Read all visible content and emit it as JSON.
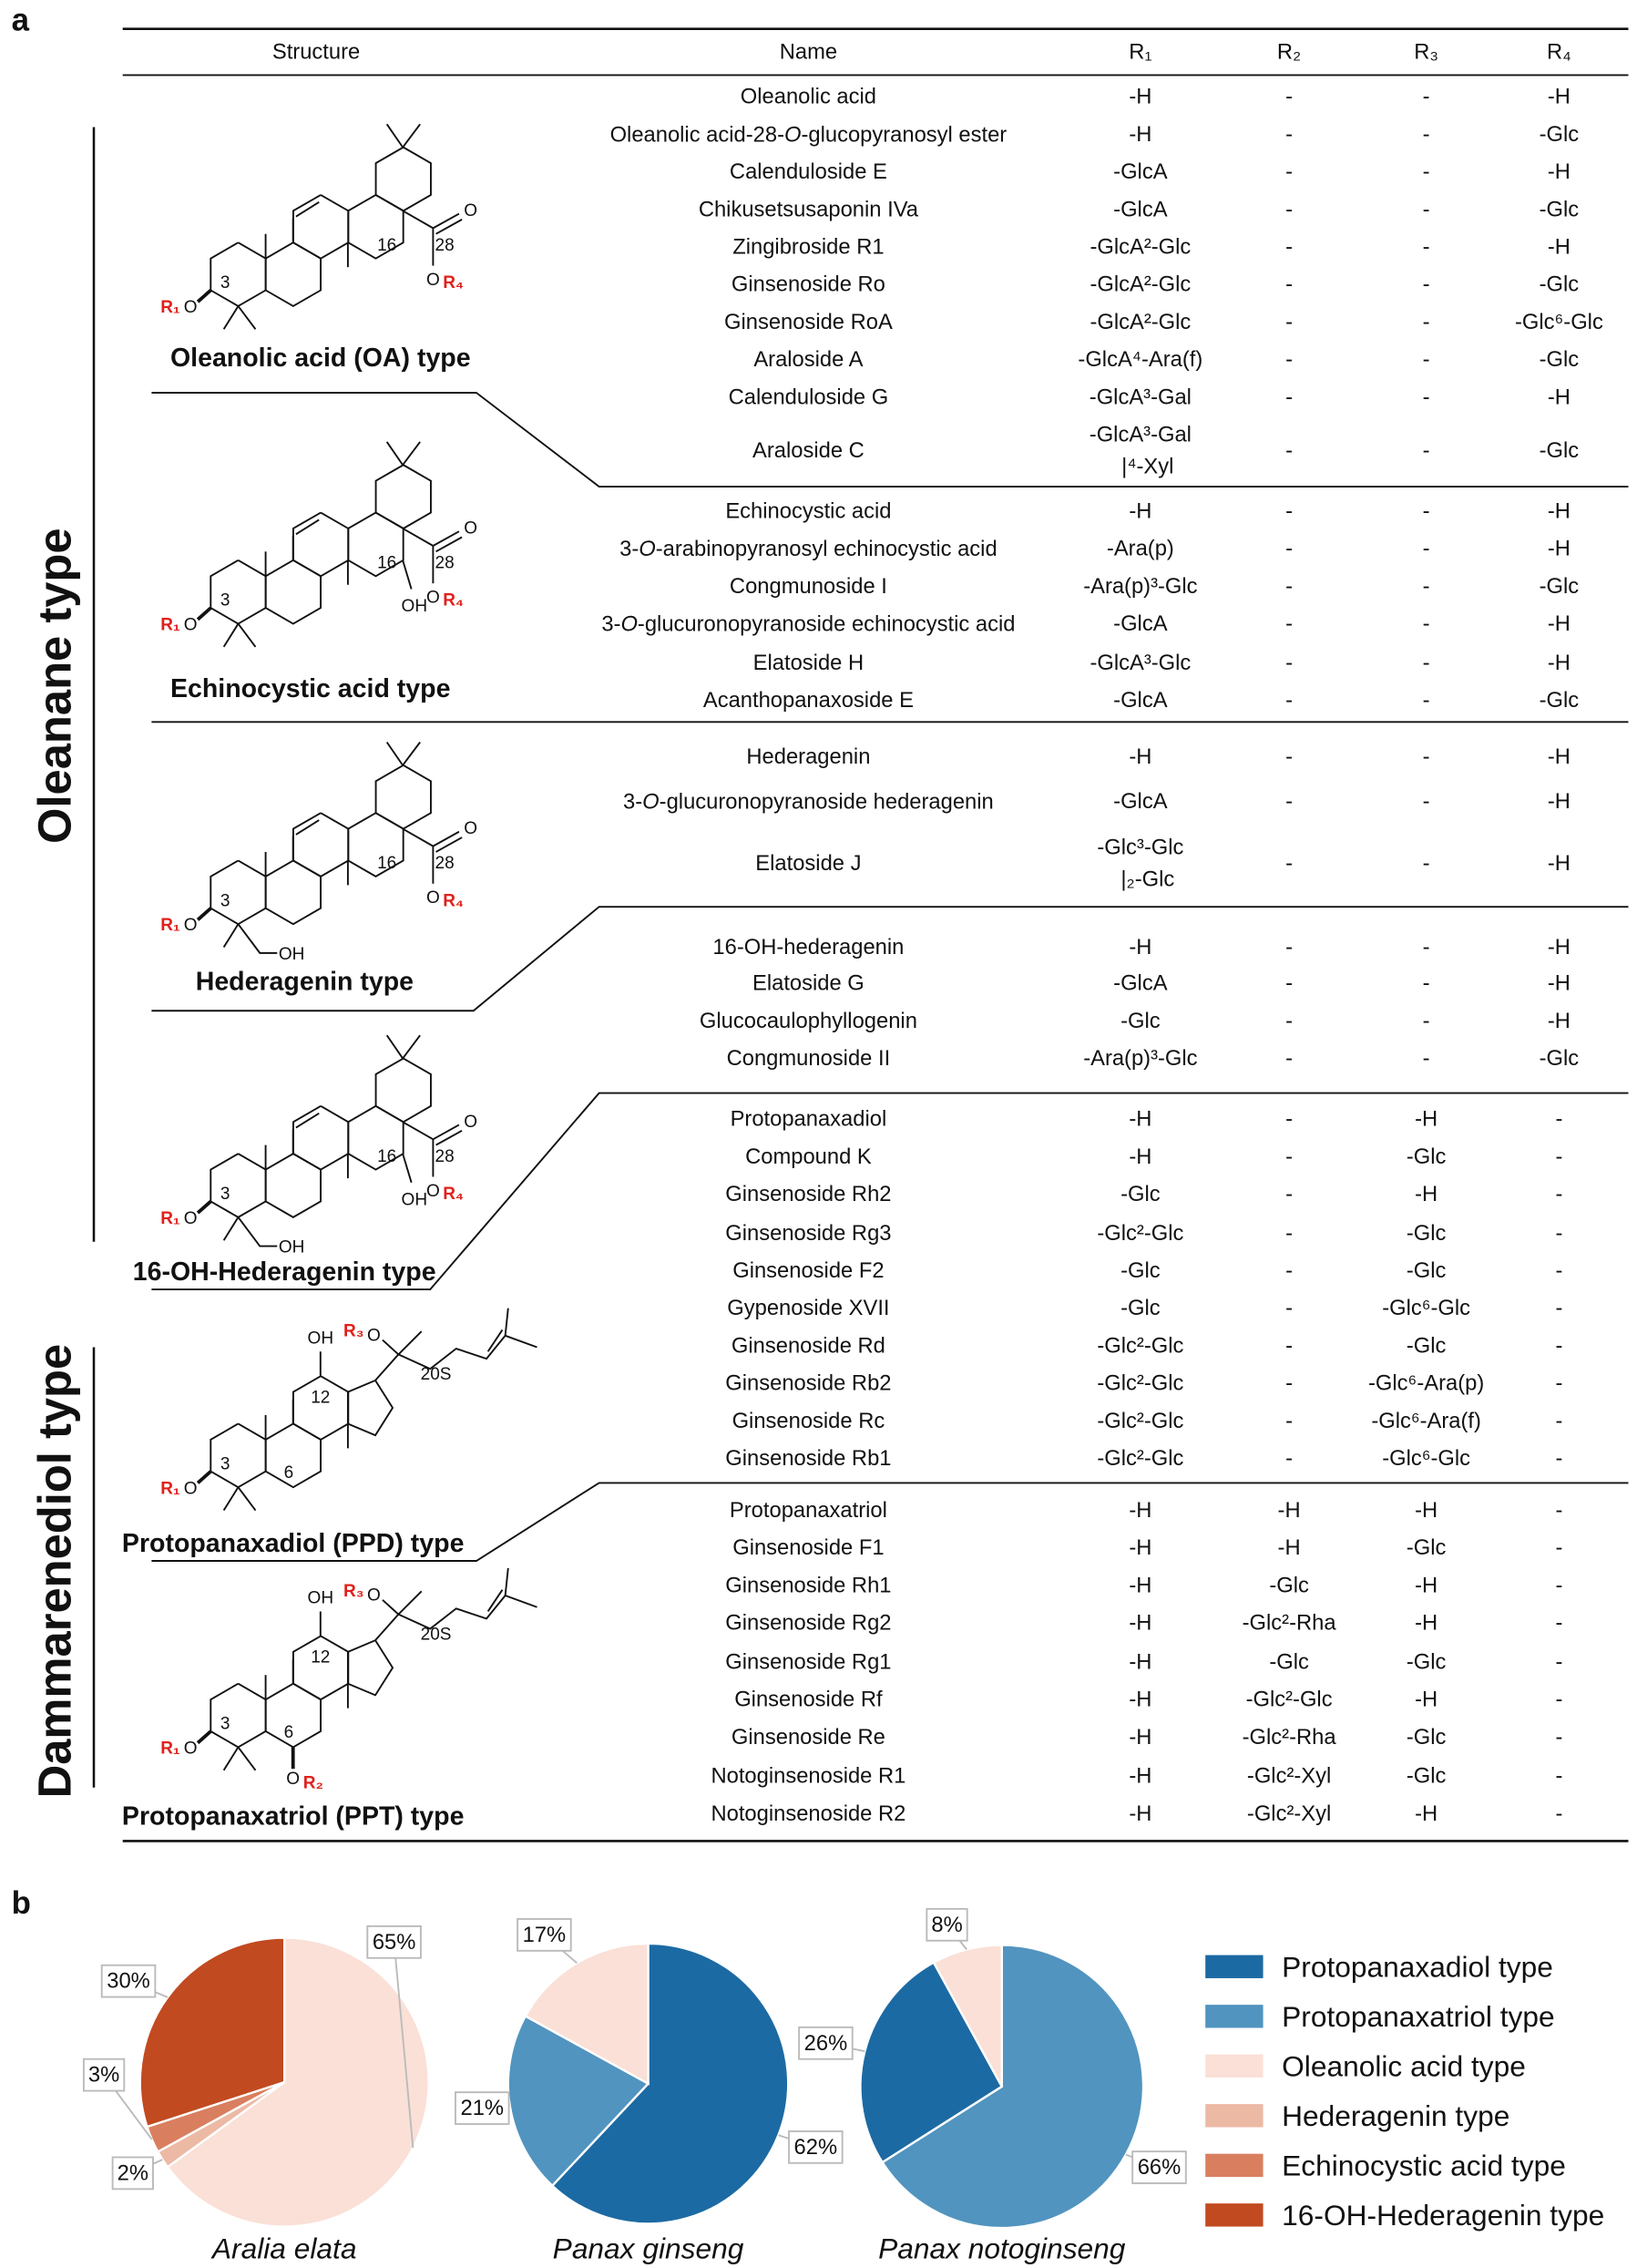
{
  "panels": [
    "a",
    "b"
  ],
  "families": [
    {
      "label": "Oleanane type"
    },
    {
      "label": "Dammarenediol type"
    }
  ],
  "table": {
    "header": [
      "Structure",
      "Name",
      "R₁",
      "R₂",
      "R₃",
      "R₄"
    ],
    "groups": [
      {
        "structure": {
          "label": "Oleanolic acid (OA) type",
          "atoms": {
            "r1": "R₁",
            "o3": "O",
            "c3": "3",
            "c16": "16",
            "c28": "28",
            "oc": "O",
            "oe": "O",
            "r4": "R₄"
          }
        },
        "rows": [
          [
            "Oleanolic acid",
            "-H",
            "-",
            "-",
            "-H"
          ],
          [
            "Oleanolic acid-28-O-glucopyranosyl ester",
            "-H",
            "-",
            "-",
            "-Glc"
          ],
          [
            "Calenduloside E",
            "-GlcA",
            "-",
            "-",
            "-H"
          ],
          [
            "Chikusetsusaponin IVa",
            "-GlcA",
            "-",
            "-",
            "-Glc"
          ],
          [
            "Zingibroside R1",
            "-GlcA²-Glc",
            "-",
            "-",
            "-H"
          ],
          [
            "Ginsenoside Ro",
            "-GlcA²-Glc",
            "-",
            "-",
            "-Glc"
          ],
          [
            "Ginsenoside RoA",
            "-GlcA²-Glc",
            "-",
            "-",
            "-Glc⁶-Glc"
          ],
          [
            "Araloside A",
            "-GlcA⁴-Ara(f)",
            "-",
            "-",
            "-Glc"
          ],
          [
            "Calenduloside G",
            "-GlcA³-Gal",
            "-",
            "-",
            "-H"
          ],
          [
            "Araloside C",
            [
              "-GlcA³-Gal",
              "|⁴-Xyl"
            ],
            "-",
            "-",
            "-Glc"
          ]
        ]
      },
      {
        "structure": {
          "label": "Echinocystic acid type",
          "atoms": {
            "r1": "R₁",
            "o3": "O",
            "c3": "3",
            "c16": "16",
            "c28": "28",
            "oc": "O",
            "oe": "O",
            "r4": "R₄",
            "oh16": "OH"
          }
        },
        "rows": [
          [
            "Echinocystic acid",
            "-H",
            "-",
            "-",
            "-H"
          ],
          [
            "3-O-arabinopyranosyl echinocystic acid",
            "-Ara(p)",
            "-",
            "-",
            "-H"
          ],
          [
            "Congmunoside I",
            "-Ara(p)³-Glc",
            "-",
            "-",
            "-Glc"
          ],
          [
            "3-O-glucuronopyranoside echinocystic acid",
            "-GlcA",
            "-",
            "-",
            "-H"
          ],
          [
            "Elatoside H",
            "-GlcA³-Glc",
            "-",
            "-",
            "-H"
          ],
          [
            "Acanthopanaxoside E",
            "-GlcA",
            "-",
            "-",
            "-Glc"
          ]
        ]
      },
      {
        "structure": {
          "label": "Hederagenin type",
          "atoms": {
            "r1": "R₁",
            "o3": "O",
            "c3": "3",
            "c16": "16",
            "c28": "28",
            "oc": "O",
            "oe": "O",
            "r4": "R₄",
            "ohCH2": "OH"
          }
        },
        "rows": [
          [
            "Hederagenin",
            "-H",
            "-",
            "-",
            "-H"
          ],
          [
            "3-O-glucuronopyranoside hederagenin",
            "-GlcA",
            "-",
            "-",
            "-H"
          ],
          [
            "Elatoside J",
            [
              "-Glc³-Glc",
              "|₂-Glc"
            ],
            "-",
            "-",
            "-H"
          ]
        ]
      },
      {
        "structure": {
          "label": "16-OH-Hederagenin type",
          "atoms": {
            "r1": "R₁",
            "o3": "O",
            "c3": "3",
            "c16": "16",
            "c28": "28",
            "oc": "O",
            "oe": "O",
            "r4": "R₄",
            "oh16": "OH",
            "ohCH2": "OH"
          }
        },
        "rows": [
          [
            "16-OH-hederagenin",
            "-H",
            "-",
            "-",
            "-H"
          ],
          [
            "Elatoside G",
            "-GlcA",
            "-",
            "-",
            "-H"
          ],
          [
            "Glucocaulophyllogenin",
            "-Glc",
            "-",
            "-",
            "-H"
          ],
          [
            "Congmunoside II",
            "-Ara(p)³-Glc",
            "-",
            "-",
            "-Glc"
          ]
        ]
      },
      {
        "structure": {
          "label": "Protopanaxadiol (PPD) type",
          "atoms": {
            "r1": "R₁",
            "o3": "O",
            "c3": "3",
            "c6": "6",
            "c12": "12",
            "oh12": "OH",
            "r3": "R₃",
            "o20": "O",
            "c20": "20S"
          }
        },
        "rows": [
          [
            "Protopanaxadiol",
            "-H",
            "-",
            "-H",
            "-"
          ],
          [
            "Compound K",
            "-H",
            "-",
            "-Glc",
            "-"
          ],
          [
            "Ginsenoside Rh2",
            "-Glc",
            "-",
            "-H",
            "-"
          ],
          [
            "Ginsenoside Rg3",
            "-Glc²-Glc",
            "-",
            "-Glc",
            "-"
          ],
          [
            "Ginsenoside F2",
            "-Glc",
            "-",
            "-Glc",
            "-"
          ],
          [
            "Gypenoside XVII",
            "-Glc",
            "-",
            "-Glc⁶-Glc",
            "-"
          ],
          [
            "Ginsenoside Rd",
            "-Glc²-Glc",
            "-",
            "-Glc",
            "-"
          ],
          [
            "Ginsenoside Rb2",
            "-Glc²-Glc",
            "-",
            "-Glc⁶-Ara(p)",
            "-"
          ],
          [
            "Ginsenoside Rc",
            "-Glc²-Glc",
            "-",
            "-Glc⁶-Ara(f)",
            "-"
          ],
          [
            "Ginsenoside Rb1",
            "-Glc²-Glc",
            "-",
            "-Glc⁶-Glc",
            "-"
          ]
        ]
      },
      {
        "structure": {
          "label": "Protopanaxatriol (PPT) type",
          "atoms": {
            "r1": "R₁",
            "o3": "O",
            "c3": "3",
            "c6": "6",
            "o6": "O",
            "r2": "R₂",
            "c12": "12",
            "oh12": "OH",
            "r3": "R₃",
            "o20": "O",
            "c20": "20S"
          }
        },
        "rows": [
          [
            "Protopanaxatriol",
            "-H",
            "-H",
            "-H",
            "-"
          ],
          [
            "Ginsenoside F1",
            "-H",
            "-H",
            "-Glc",
            "-"
          ],
          [
            "Ginsenoside Rh1",
            "-H",
            "-Glc",
            "-H",
            "-"
          ],
          [
            "Ginsenoside Rg2",
            "-H",
            "-Glc²-Rha",
            "-H",
            "-"
          ],
          [
            "Ginsenoside Rg1",
            "-H",
            "-Glc",
            "-Glc",
            "-"
          ],
          [
            "Ginsenoside Rf",
            "-H",
            "-Glc²-Glc",
            "-H",
            "-"
          ],
          [
            "Ginsenoside Re",
            "-H",
            "-Glc²-Rha",
            "-Glc",
            "-"
          ],
          [
            "Notoginsenoside R1",
            "-H",
            "-Glc²-Xyl",
            "-Glc",
            "-"
          ],
          [
            "Notoginsenoside R2",
            "-H",
            "-Glc²-Xyl",
            "-H",
            "-"
          ]
        ]
      }
    ]
  },
  "legend": [
    {
      "name": "Protopanaxadiol type",
      "color": "#1c6aa3"
    },
    {
      "name": "Protopanaxatriol type",
      "color": "#5194bf"
    },
    {
      "name": "Oleanolic acid type",
      "color": "#fae0d6"
    },
    {
      "name": "Hederagenin type",
      "color": "#ecb9a5"
    },
    {
      "name": "Echinocystic acid type",
      "color": "#d97f5f"
    },
    {
      "name": "16-OH-Hederagenin type",
      "color": "#c14a20"
    }
  ],
  "chart_data": [
    {
      "type": "pie",
      "title": "Aralia elata",
      "categories": [
        "Oleanolic acid type",
        "Hederagenin type",
        "Echinocystic acid type",
        "16-OH-Hederagenin type"
      ],
      "values": [
        65,
        2,
        3,
        30
      ],
      "value_labels": [
        "65%",
        "2%",
        "3%",
        "30%"
      ]
    },
    {
      "type": "pie",
      "title": "Panax ginseng",
      "categories": [
        "Protopanaxadiol type",
        "Protopanaxatriol type",
        "Oleanolic acid type"
      ],
      "values": [
        62,
        21,
        17
      ],
      "value_labels": [
        "62%",
        "21%",
        "17%"
      ]
    },
    {
      "type": "pie",
      "title": "Panax notoginseng",
      "categories": [
        "Protopanaxatriol type",
        "Protopanaxadiol type",
        "Oleanolic acid type"
      ],
      "values": [
        66,
        26,
        8
      ],
      "value_labels": [
        "66%",
        "26%",
        "8%"
      ]
    }
  ]
}
